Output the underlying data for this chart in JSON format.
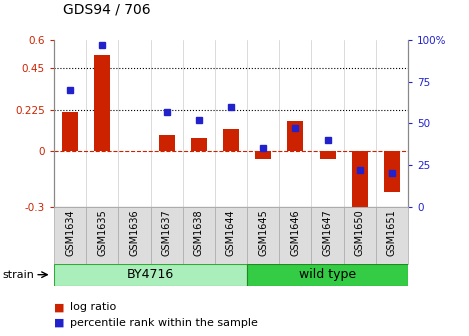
{
  "title": "GDS94 / 706",
  "samples": [
    "GSM1634",
    "GSM1635",
    "GSM1636",
    "GSM1637",
    "GSM1638",
    "GSM1644",
    "GSM1645",
    "GSM1646",
    "GSM1647",
    "GSM1650",
    "GSM1651"
  ],
  "log_ratio": [
    0.21,
    0.52,
    0.0,
    0.085,
    0.07,
    0.12,
    -0.04,
    0.165,
    -0.04,
    -0.38,
    -0.22
  ],
  "percentile_rank": [
    70,
    97,
    null,
    57,
    52,
    60,
    35,
    47,
    40,
    22,
    20
  ],
  "left_ylim": [
    -0.3,
    0.6
  ],
  "right_ylim": [
    0,
    100
  ],
  "left_yticks": [
    -0.3,
    0.0,
    0.225,
    0.45,
    0.6
  ],
  "left_ytick_labels": [
    "-0.3",
    "0",
    "0.225",
    "0.45",
    "0.6"
  ],
  "right_yticks": [
    0,
    25,
    50,
    75,
    100
  ],
  "right_ytick_labels": [
    "0",
    "25",
    "50",
    "75",
    "100%"
  ],
  "hlines": [
    0.225,
    0.45
  ],
  "bar_color": "#cc2200",
  "dot_color": "#2222cc",
  "zero_line_color": "#cc2200",
  "n_by4716": 6,
  "by4716_color": "#aaeebb",
  "wild_type_color": "#33cc44",
  "strain_label": "strain",
  "by4716_label": "BY4716",
  "wild_type_label": "wild type",
  "legend_log_ratio": "log ratio",
  "legend_percentile": "percentile rank within the sample",
  "bar_width": 0.5,
  "title_fontsize": 10,
  "tick_fontsize": 7.5,
  "label_fontsize": 7,
  "legend_fontsize": 8
}
